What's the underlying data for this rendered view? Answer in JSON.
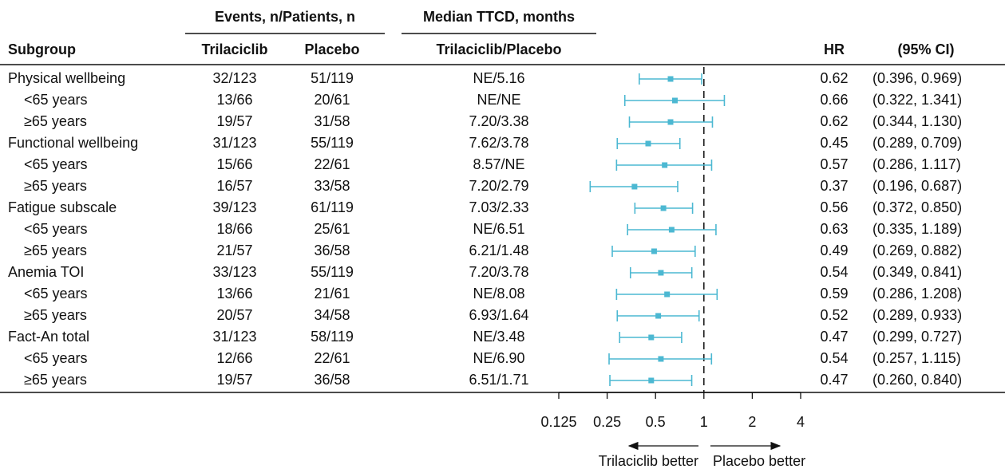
{
  "chart_data": {
    "type": "forest",
    "headers": {
      "events": "Events, n/Patients, n",
      "median": "Median TTCD, months",
      "subgroup": "Subgroup",
      "trilaciclib": "Trilaciclib",
      "placebo": "Placebo",
      "median_sub": "Trilaciclib/Placebo",
      "hr": "HR",
      "ci": "(95% CI)"
    },
    "rows": [
      {
        "subgroup": "Physical wellbeing",
        "level": 0,
        "trilaciclib": "32/123",
        "placebo": "51/119",
        "median": "NE/5.16",
        "hr": 0.62,
        "ci_low": 0.396,
        "ci_high": 0.969,
        "ci_label": "(0.396, 0.969)"
      },
      {
        "subgroup": "<65 years",
        "level": 1,
        "trilaciclib": "13/66",
        "placebo": "20/61",
        "median": "NE/NE",
        "hr": 0.66,
        "ci_low": 0.322,
        "ci_high": 1.341,
        "ci_label": "(0.322, 1.341)"
      },
      {
        "subgroup": "≥65 years",
        "level": 1,
        "trilaciclib": "19/57",
        "placebo": "31/58",
        "median": "7.20/3.38",
        "hr": 0.62,
        "ci_low": 0.344,
        "ci_high": 1.13,
        "ci_label": "(0.344, 1.130)"
      },
      {
        "subgroup": "Functional wellbeing",
        "level": 0,
        "trilaciclib": "31/123",
        "placebo": "55/119",
        "median": "7.62/3.78",
        "hr": 0.45,
        "ci_low": 0.289,
        "ci_high": 0.709,
        "ci_label": "(0.289, 0.709)"
      },
      {
        "subgroup": "<65 years",
        "level": 1,
        "trilaciclib": "15/66",
        "placebo": "22/61",
        "median": "8.57/NE",
        "hr": 0.57,
        "ci_low": 0.286,
        "ci_high": 1.117,
        "ci_label": "(0.286, 1.117)"
      },
      {
        "subgroup": "≥65 years",
        "level": 1,
        "trilaciclib": "16/57",
        "placebo": "33/58",
        "median": "7.20/2.79",
        "hr": 0.37,
        "ci_low": 0.196,
        "ci_high": 0.687,
        "ci_label": "(0.196, 0.687)"
      },
      {
        "subgroup": "Fatigue subscale",
        "level": 0,
        "trilaciclib": "39/123",
        "placebo": "61/119",
        "median": "7.03/2.33",
        "hr": 0.56,
        "ci_low": 0.372,
        "ci_high": 0.85,
        "ci_label": "(0.372, 0.850)"
      },
      {
        "subgroup": "<65 years",
        "level": 1,
        "trilaciclib": "18/66",
        "placebo": "25/61",
        "median": "NE/6.51",
        "hr": 0.63,
        "ci_low": 0.335,
        "ci_high": 1.189,
        "ci_label": "(0.335, 1.189)"
      },
      {
        "subgroup": "≥65 years",
        "level": 1,
        "trilaciclib": "21/57",
        "placebo": "36/58",
        "median": "6.21/1.48",
        "hr": 0.49,
        "ci_low": 0.269,
        "ci_high": 0.882,
        "ci_label": "(0.269, 0.882)"
      },
      {
        "subgroup": "Anemia TOI",
        "level": 0,
        "trilaciclib": "33/123",
        "placebo": "55/119",
        "median": "7.20/3.78",
        "hr": 0.54,
        "ci_low": 0.349,
        "ci_high": 0.841,
        "ci_label": "(0.349, 0.841)"
      },
      {
        "subgroup": "<65 years",
        "level": 1,
        "trilaciclib": "13/66",
        "placebo": "21/61",
        "median": "NE/8.08",
        "hr": 0.59,
        "ci_low": 0.286,
        "ci_high": 1.208,
        "ci_label": "(0.286, 1.208)"
      },
      {
        "subgroup": "≥65 years",
        "level": 1,
        "trilaciclib": "20/57",
        "placebo": "34/58",
        "median": "6.93/1.64",
        "hr": 0.52,
        "ci_low": 0.289,
        "ci_high": 0.933,
        "ci_label": "(0.289, 0.933)"
      },
      {
        "subgroup": "Fact-An total",
        "level": 0,
        "trilaciclib": "31/123",
        "placebo": "58/119",
        "median": "NE/3.48",
        "hr": 0.47,
        "ci_low": 0.299,
        "ci_high": 0.727,
        "ci_label": "(0.299, 0.727)"
      },
      {
        "subgroup": "<65 years",
        "level": 1,
        "trilaciclib": "12/66",
        "placebo": "22/61",
        "median": "NE/6.90",
        "hr": 0.54,
        "ci_low": 0.257,
        "ci_high": 1.115,
        "ci_label": "(0.257, 1.115)"
      },
      {
        "subgroup": "≥65 years",
        "level": 1,
        "trilaciclib": "19/57",
        "placebo": "36/58",
        "median": "6.51/1.71",
        "hr": 0.47,
        "ci_low": 0.26,
        "ci_high": 0.84,
        "ci_label": "(0.260, 0.840)"
      }
    ],
    "xlim": [
      0.125,
      4
    ],
    "xticks": [
      0.125,
      0.25,
      0.5,
      1,
      2,
      4
    ],
    "log_x": true,
    "reference": 1,
    "color": "#4cb8d2",
    "direction_labels": {
      "left": "Trilaciclib better",
      "right": "Placebo better"
    }
  }
}
